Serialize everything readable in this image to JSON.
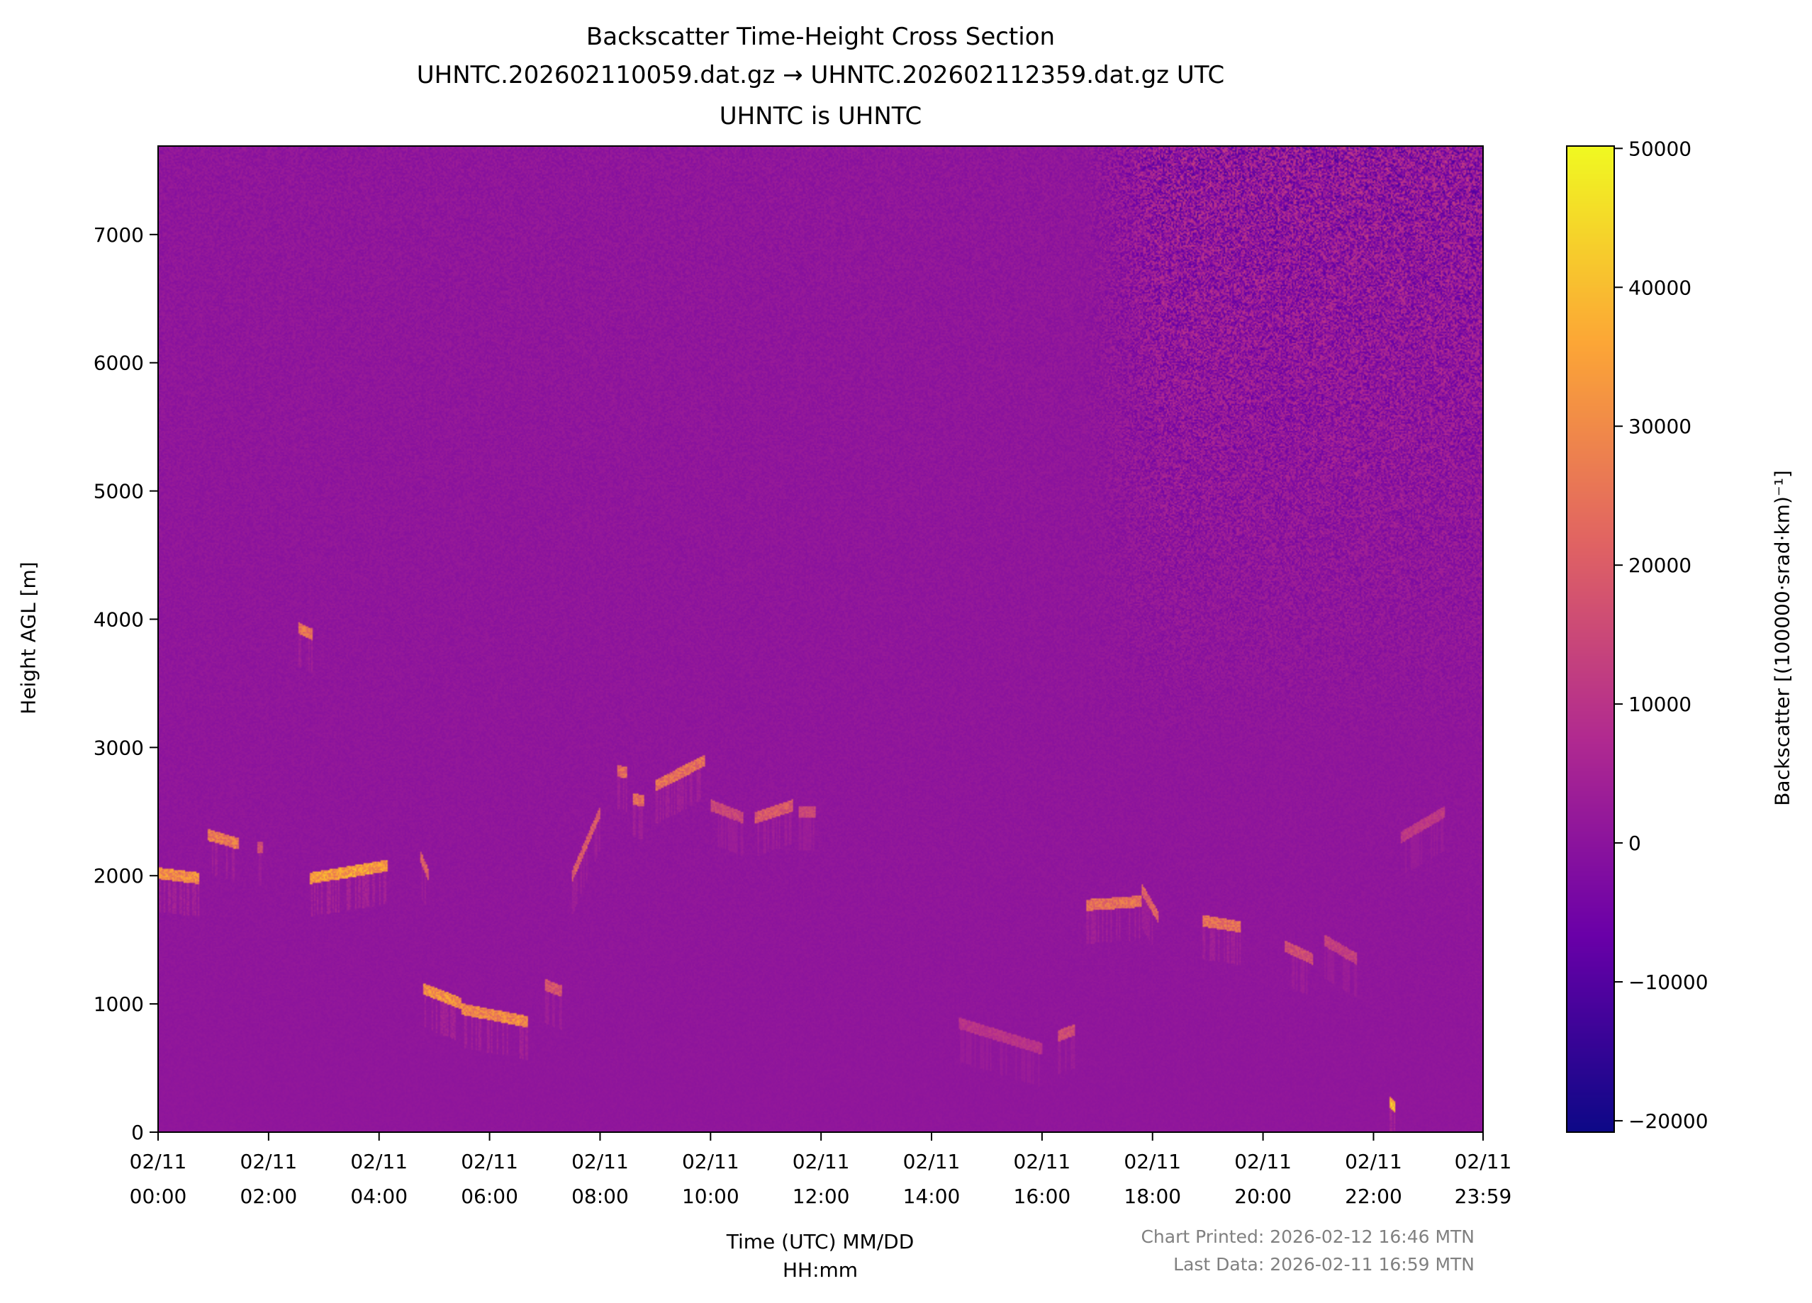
{
  "chart_data": {
    "type": "heatmap",
    "title": [
      "Backscatter Time-Height Cross Section",
      "UHNTC.202602110059.dat.gz → UHNTC.202602112359.dat.gz UTC",
      "UHNTC is UHNTC"
    ],
    "xlabel": [
      "Time (UTC) MM/DD",
      "HH:mm"
    ],
    "ylabel": "Height AGL [m]",
    "x_unit": "hours UTC on 02/11",
    "xlim": [
      0,
      23.983
    ],
    "ylim": [
      0,
      7690
    ],
    "x_ticks": [
      {
        "value": 0,
        "label": [
          "02/11",
          "00:00"
        ]
      },
      {
        "value": 2,
        "label": [
          "02/11",
          "02:00"
        ]
      },
      {
        "value": 4,
        "label": [
          "02/11",
          "04:00"
        ]
      },
      {
        "value": 6,
        "label": [
          "02/11",
          "06:00"
        ]
      },
      {
        "value": 8,
        "label": [
          "02/11",
          "08:00"
        ]
      },
      {
        "value": 10,
        "label": [
          "02/11",
          "10:00"
        ]
      },
      {
        "value": 12,
        "label": [
          "02/11",
          "12:00"
        ]
      },
      {
        "value": 14,
        "label": [
          "02/11",
          "14:00"
        ]
      },
      {
        "value": 16,
        "label": [
          "02/11",
          "16:00"
        ]
      },
      {
        "value": 18,
        "label": [
          "02/11",
          "18:00"
        ]
      },
      {
        "value": 20,
        "label": [
          "02/11",
          "20:00"
        ]
      },
      {
        "value": 22,
        "label": [
          "02/11",
          "22:00"
        ]
      },
      {
        "value": 23.983,
        "label": [
          "02/11",
          "23:59"
        ]
      }
    ],
    "y_ticks": [
      0,
      1000,
      2000,
      3000,
      4000,
      5000,
      6000,
      7000
    ],
    "colorbar": {
      "label": "Backscatter [(100000·srad·km)⁻¹]",
      "colormap": "plasma",
      "range": [
        -20820,
        50170
      ],
      "ticks": [
        {
          "value": 50000,
          "label": "50000"
        },
        {
          "value": 40000,
          "label": "40000"
        },
        {
          "value": 30000,
          "label": "30000"
        },
        {
          "value": 20000,
          "label": "20000"
        },
        {
          "value": 10000,
          "label": "10000"
        },
        {
          "value": 0,
          "label": "0"
        },
        {
          "value": -10000,
          "label": "−10000"
        },
        {
          "value": -20000,
          "label": "−20000"
        }
      ],
      "colors": [
        "#0d0887",
        "#6a00a8",
        "#b12a90",
        "#e16462",
        "#fca636",
        "#f0f921"
      ]
    },
    "background_value": 1000,
    "noise_increase_after_hour": 16.75,
    "layers": [
      {
        "t0": 0.0,
        "t1": 0.75,
        "h0": 2020,
        "h1": 1980,
        "value": 38000
      },
      {
        "t0": 0.9,
        "t1": 1.45,
        "h0": 2320,
        "h1": 2250,
        "value": 33000
      },
      {
        "t0": 1.8,
        "t1": 1.9,
        "h0": 2220,
        "h1": 2220,
        "value": 20000
      },
      {
        "t0": 2.55,
        "t1": 2.8,
        "h0": 3930,
        "h1": 3880,
        "value": 30000
      },
      {
        "t0": 2.75,
        "t1": 4.15,
        "h0": 1980,
        "h1": 2080,
        "value": 42000
      },
      {
        "t0": 4.75,
        "t1": 4.9,
        "h0": 2150,
        "h1": 2000,
        "value": 25000
      },
      {
        "t0": 4.8,
        "t1": 5.5,
        "h0": 1120,
        "h1": 1000,
        "value": 38000
      },
      {
        "t0": 5.5,
        "t1": 6.7,
        "h0": 960,
        "h1": 860,
        "value": 36000
      },
      {
        "t0": 7.0,
        "t1": 7.3,
        "h0": 1150,
        "h1": 1100,
        "value": 22000
      },
      {
        "t0": 7.5,
        "t1": 8.0,
        "h0": 2000,
        "h1": 2500,
        "value": 24000
      },
      {
        "t0": 8.3,
        "t1": 8.5,
        "h0": 2820,
        "h1": 2800,
        "value": 28000
      },
      {
        "t0": 8.6,
        "t1": 8.8,
        "h0": 2600,
        "h1": 2580,
        "value": 30000
      },
      {
        "t0": 9.0,
        "t1": 9.9,
        "h0": 2700,
        "h1": 2900,
        "value": 30000
      },
      {
        "t0": 10.0,
        "t1": 10.6,
        "h0": 2550,
        "h1": 2450,
        "value": 18000
      },
      {
        "t0": 10.8,
        "t1": 11.5,
        "h0": 2450,
        "h1": 2550,
        "value": 24000
      },
      {
        "t0": 11.6,
        "t1": 11.9,
        "h0": 2500,
        "h1": 2500,
        "value": 18000
      },
      {
        "t0": 14.5,
        "t1": 16.0,
        "h0": 850,
        "h1": 650,
        "value": 12000
      },
      {
        "t0": 16.3,
        "t1": 16.6,
        "h0": 750,
        "h1": 800,
        "value": 20000
      },
      {
        "t0": 16.8,
        "t1": 17.8,
        "h0": 1770,
        "h1": 1800,
        "value": 30000
      },
      {
        "t0": 17.8,
        "t1": 18.1,
        "h0": 1900,
        "h1": 1680,
        "value": 26000
      },
      {
        "t0": 18.9,
        "t1": 19.6,
        "h0": 1650,
        "h1": 1600,
        "value": 30000
      },
      {
        "t0": 20.4,
        "t1": 20.9,
        "h0": 1450,
        "h1": 1350,
        "value": 20000
      },
      {
        "t0": 21.1,
        "t1": 21.7,
        "h0": 1500,
        "h1": 1350,
        "value": 16000
      },
      {
        "t0": 22.5,
        "t1": 23.3,
        "h0": 2300,
        "h1": 2500,
        "value": 14000
      },
      {
        "t0": 22.3,
        "t1": 22.38,
        "h0": 230,
        "h1": 200,
        "value": 48000
      }
    ]
  },
  "footer": {
    "printed": "Chart Printed: 2026-02-12 16:46 MTN",
    "last_data": "Last Data: 2026-02-11 16:59 MTN"
  }
}
